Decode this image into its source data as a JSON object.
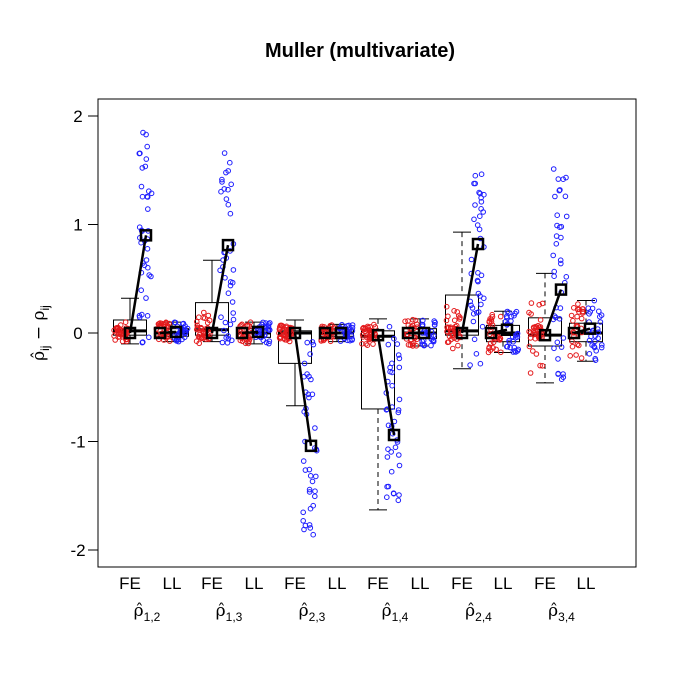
{
  "chart_data": {
    "type": "box",
    "title": "Muller (multivariate)",
    "ylabel": {
      "hat": "ρ̂",
      "sub1": "ij",
      "minus": " − ρ",
      "sub2": "ij"
    },
    "ylim": [
      -2.2,
      2.15
    ],
    "yticks": [
      -2,
      -1,
      0,
      1,
      2
    ],
    "ytick_labels": [
      "-2",
      "-1",
      "0",
      "1",
      "2"
    ],
    "method_labels": [
      "FE",
      "LL"
    ],
    "groups": [
      {
        "label": "ρ̂",
        "sub": "1,2",
        "FE": {
          "q1": -0.02,
          "median": 0.02,
          "q3": 0.12,
          "whisker_low": -0.1,
          "whisker_high": 0.32,
          "mean_start": 0.0,
          "mean_end": 0.9
        },
        "LL": {
          "q1": -0.03,
          "median": 0.0,
          "q3": 0.04,
          "whisker_low": -0.08,
          "whisker_high": 0.1,
          "mean_start": 0.0,
          "mean_end": 0.01
        },
        "red_range": [
          -0.08,
          0.1
        ],
        "blue_range": [
          -0.1,
          1.88
        ],
        "blue_mean": 0.9
      },
      {
        "label": "ρ̂",
        "sub": "1,3",
        "FE": {
          "q1": -0.02,
          "median": 0.03,
          "q3": 0.28,
          "whisker_low": -0.08,
          "whisker_high": 0.67,
          "mean_start": 0.0,
          "mean_end": 0.81
        },
        "LL": {
          "q1": -0.04,
          "median": 0.0,
          "q3": 0.04,
          "whisker_low": -0.1,
          "whisker_high": 0.1,
          "mean_start": 0.0,
          "mean_end": 0.01
        },
        "red_range": [
          -0.1,
          0.2
        ],
        "blue_range": [
          -0.1,
          1.7
        ],
        "blue_mean": 0.81
      },
      {
        "label": "ρ̂",
        "sub": "2,3",
        "FE": {
          "q1": -0.28,
          "median": 0.0,
          "q3": 0.02,
          "whisker_low": -0.67,
          "whisker_high": 0.12,
          "mean_start": 0.0,
          "mean_end": -1.04
        },
        "LL": {
          "q1": -0.03,
          "median": 0.0,
          "q3": 0.03,
          "whisker_low": -0.08,
          "whisker_high": 0.08,
          "mean_start": 0.0,
          "mean_end": 0.0
        },
        "red_range": [
          -0.08,
          0.08
        ],
        "blue_range": [
          -1.86,
          0.12
        ],
        "blue_mean": -1.04
      },
      {
        "label": "ρ̂",
        "sub": "1,4",
        "FE": {
          "q1": -0.7,
          "median": -0.03,
          "q3": 0.02,
          "whisker_low": -1.63,
          "whisker_high": 0.13,
          "mean_start": -0.02,
          "mean_end": -0.94
        },
        "LL": {
          "q1": -0.05,
          "median": 0.0,
          "q3": 0.04,
          "whisker_low": -0.12,
          "whisker_high": 0.13,
          "mean_start": 0.0,
          "mean_end": 0.0
        },
        "red_range": [
          -0.12,
          0.12
        ],
        "blue_range": [
          -1.63,
          0.13
        ],
        "blue_mean": -0.94
      },
      {
        "label": "ρ̂",
        "sub": "2,4",
        "FE": {
          "q1": -0.02,
          "median": 0.02,
          "q3": 0.35,
          "whisker_low": -0.33,
          "whisker_high": 0.93,
          "mean_start": 0.0,
          "mean_end": 0.82
        },
        "LL": {
          "q1": -0.08,
          "median": 0.0,
          "q3": 0.07,
          "whisker_low": -0.18,
          "whisker_high": 0.2,
          "mean_start": 0.0,
          "mean_end": 0.03
        },
        "red_range": [
          -0.15,
          0.25
        ],
        "blue_range": [
          -0.33,
          1.65
        ],
        "blue_mean": 0.82
      },
      {
        "label": "ρ̂",
        "sub": "3,4",
        "FE": {
          "q1": -0.12,
          "median": -0.02,
          "q3": 0.14,
          "whisker_low": -0.46,
          "whisker_high": 0.55,
          "mean_start": -0.02,
          "mean_end": 0.4
        },
        "LL": {
          "q1": -0.08,
          "median": 0.0,
          "q3": 0.09,
          "whisker_low": -0.26,
          "whisker_high": 0.3,
          "mean_start": 0.0,
          "mean_end": 0.04
        },
        "red_range": [
          -0.4,
          0.3
        ],
        "blue_range": [
          -0.46,
          1.54
        ],
        "blue_mean": 0.4
      }
    ],
    "point_colors": {
      "red": "#e41a1c",
      "blue": "#1f1fff"
    },
    "grid": false
  }
}
